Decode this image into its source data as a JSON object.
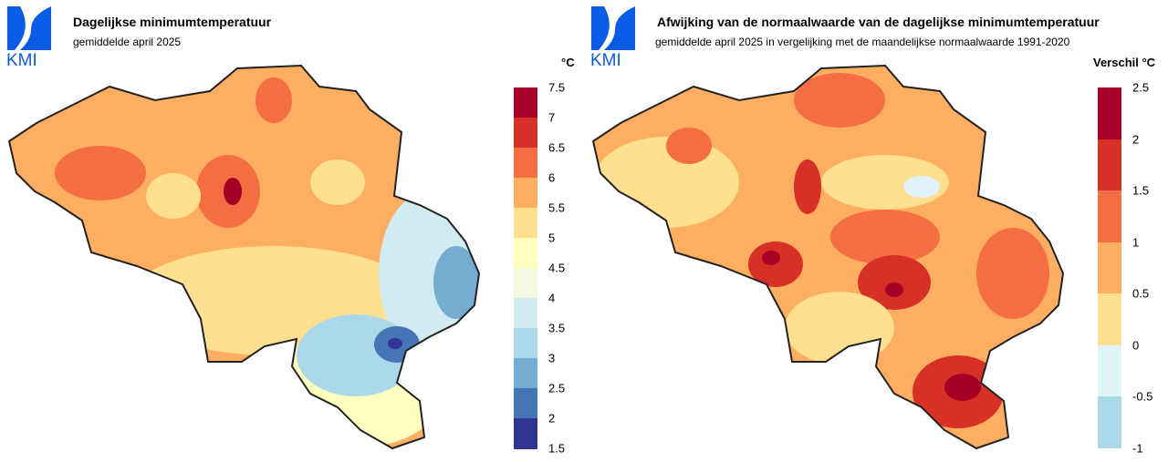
{
  "left": {
    "logo": "KMI",
    "title": "Dagelijkse minimumtemperatuur",
    "subtitle": "gemiddelde april 2025",
    "legend": {
      "unit": "°C",
      "ticks": [
        "7.5",
        "7",
        "6.5",
        "6",
        "5.5",
        "5",
        "4.5",
        "4",
        "3.5",
        "3",
        "2.5",
        "2",
        "1.5"
      ],
      "colors": [
        "#a50026",
        "#d73027",
        "#f46d43",
        "#fdae61",
        "#fee090",
        "#ffffbf",
        "#f3f9de",
        "#d1ebf2",
        "#abd9e9",
        "#74add1",
        "#4575b4",
        "#313695"
      ]
    }
  },
  "right": {
    "logo": "KMI",
    "title": "Afwijking van de normaalwaarde van de dagelijkse minimumtemperatuur",
    "subtitle": "gemiddelde april 2025 in vergelijking met de maandelijkse normaalwaarde 1991-2020",
    "legend": {
      "unit": "Verschil °C",
      "ticks": [
        "2.5",
        "2",
        "1.5",
        "1",
        "0.5",
        "0",
        "-0.5",
        "-1"
      ],
      "colors": [
        "#a50026",
        "#d73027",
        "#f46d43",
        "#fdae61",
        "#fee090",
        "#e0f3f8",
        "#abd9e9"
      ]
    }
  }
}
